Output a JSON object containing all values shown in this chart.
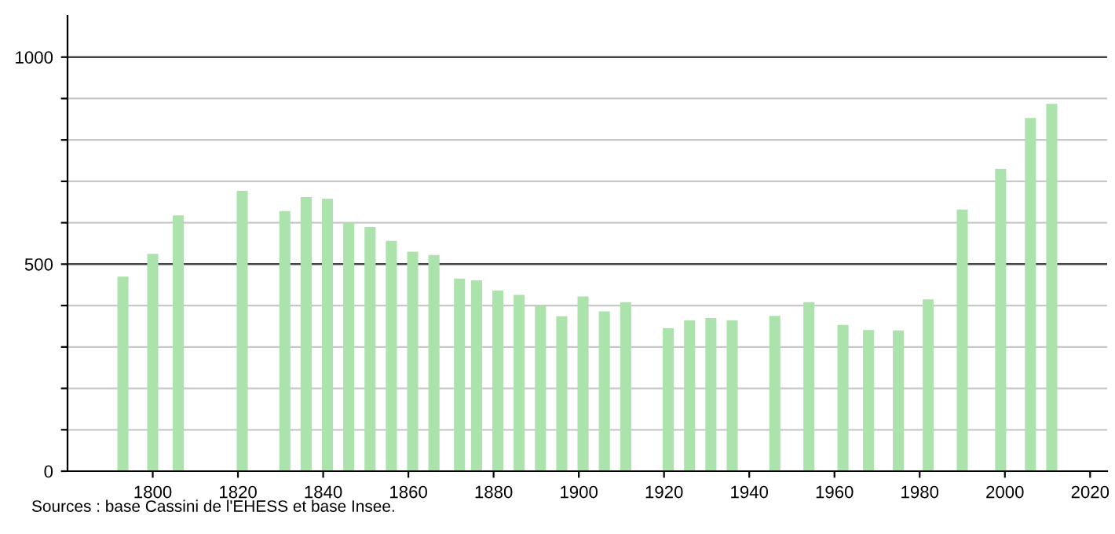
{
  "chart_data": {
    "type": "bar",
    "x": [
      1793,
      1800,
      1806,
      1821,
      1831,
      1836,
      1841,
      1846,
      1851,
      1856,
      1861,
      1866,
      1872,
      1876,
      1881,
      1886,
      1891,
      1896,
      1901,
      1906,
      1911,
      1921,
      1926,
      1931,
      1936,
      1946,
      1954,
      1962,
      1968,
      1975,
      1982,
      1990,
      1999,
      2006,
      2011
    ],
    "series": [
      {
        "color": "#ace3ac",
        "values": [
          470,
          525,
          618,
          677,
          628,
          662,
          658,
          600,
          590,
          556,
          530,
          522,
          465,
          461,
          436,
          426,
          399,
          374,
          422,
          386,
          408,
          345,
          364,
          370,
          364,
          375,
          408,
          353,
          341,
          340,
          415,
          632,
          730,
          853,
          887
        ]
      }
    ],
    "xlim": [
      1780,
      2024
    ],
    "xticks": [
      1800,
      1820,
      1840,
      1860,
      1880,
      1900,
      1920,
      1940,
      1960,
      1980,
      2000,
      2020
    ],
    "ylim": [
      0,
      1100
    ],
    "yticks": [
      0,
      {
        "value": 100,
        "label": null
      },
      {
        "value": 200,
        "label": null
      },
      {
        "value": 300,
        "label": null
      },
      {
        "value": 400,
        "label": null
      },
      500,
      {
        "value": 600,
        "label": null
      },
      {
        "value": 700,
        "label": null
      },
      {
        "value": 800,
        "label": null
      },
      {
        "value": 900,
        "label": null
      },
      1000
    ],
    "grid": "y",
    "legend": false,
    "annotations": [
      "Sources : base Cassini de l'EHESS et base Insee."
    ]
  }
}
